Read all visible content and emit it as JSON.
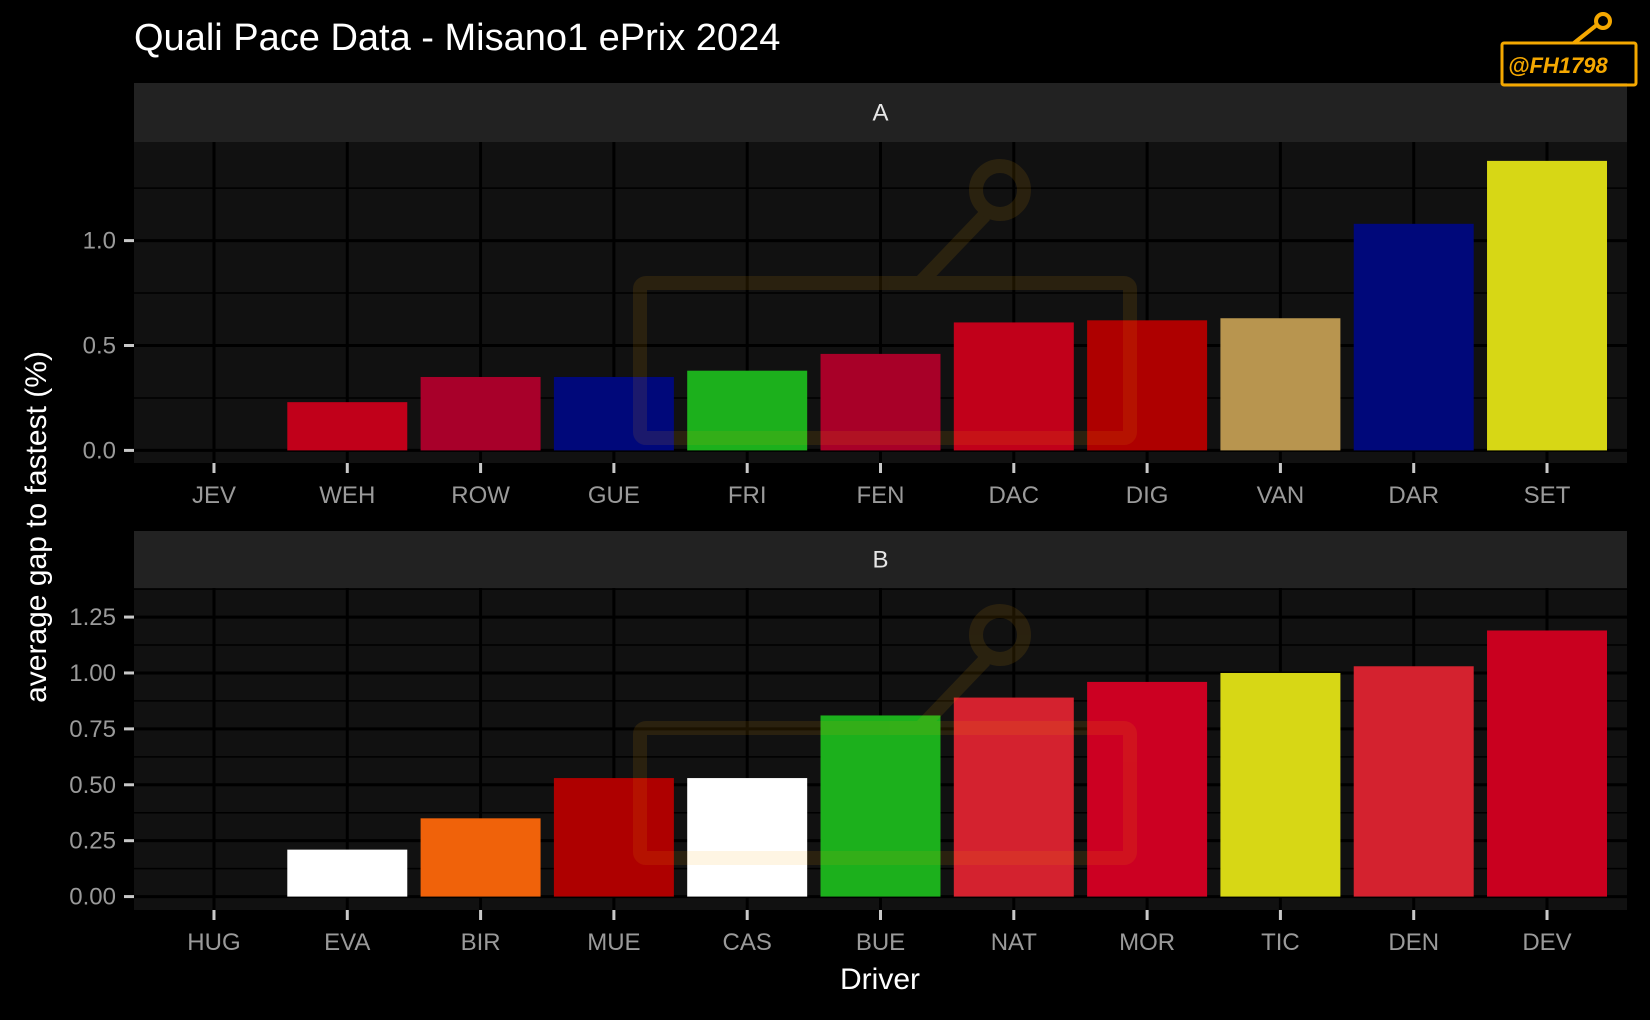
{
  "chart_data": {
    "type": "bar",
    "title": "Quali Pace Data - Misano1 ePrix 2024",
    "xlabel": "Driver",
    "ylabel": "average gap to fastest (%)",
    "watermark": "@FH1798",
    "colors": {
      "background": "#000000",
      "panel": "#111111",
      "strip": "#222222",
      "grid": "#000000"
    },
    "panels": [
      {
        "name": "A",
        "ylim": [
          -0.06,
          1.47
        ],
        "yticks": [
          0.0,
          0.5,
          1.0
        ],
        "ytick_labels": [
          "0.0",
          "0.5",
          "1.0"
        ],
        "categories": [
          "JEV",
          "WEH",
          "ROW",
          "GUE",
          "FRI",
          "FEN",
          "DAC",
          "DIG",
          "VAN",
          "DAR",
          "SET"
        ],
        "values": [
          0.0,
          0.23,
          0.35,
          0.35,
          0.38,
          0.46,
          0.61,
          0.62,
          0.63,
          1.08,
          1.38
        ],
        "colors": [
          "#000000",
          "#c1001a",
          "#a8002a",
          "#00087a",
          "#1cb01c",
          "#a80028",
          "#c1001a",
          "#ae0000",
          "#b8954f",
          "#00087a",
          "#d7d715"
        ]
      },
      {
        "name": "B",
        "ylim": [
          -0.06,
          1.38
        ],
        "yticks": [
          0.0,
          0.25,
          0.5,
          0.75,
          1.0,
          1.25
        ],
        "ytick_labels": [
          "0.00",
          "0.25",
          "0.50",
          "0.75",
          "1.00",
          "1.25"
        ],
        "categories": [
          "HUG",
          "EVA",
          "BIR",
          "MUE",
          "CAS",
          "BUE",
          "NAT",
          "MOR",
          "TIC",
          "DEN",
          "DEV"
        ],
        "values": [
          0.0,
          0.21,
          0.35,
          0.53,
          0.53,
          0.81,
          0.89,
          0.96,
          1.0,
          1.03,
          1.19
        ],
        "colors": [
          "#000000",
          "#ffffff",
          "#f0620a",
          "#ae0000",
          "#ffffff",
          "#1cb01c",
          "#d4222f",
          "#cc0022",
          "#d7d715",
          "#d4222f",
          "#c9001f"
        ]
      }
    ]
  }
}
